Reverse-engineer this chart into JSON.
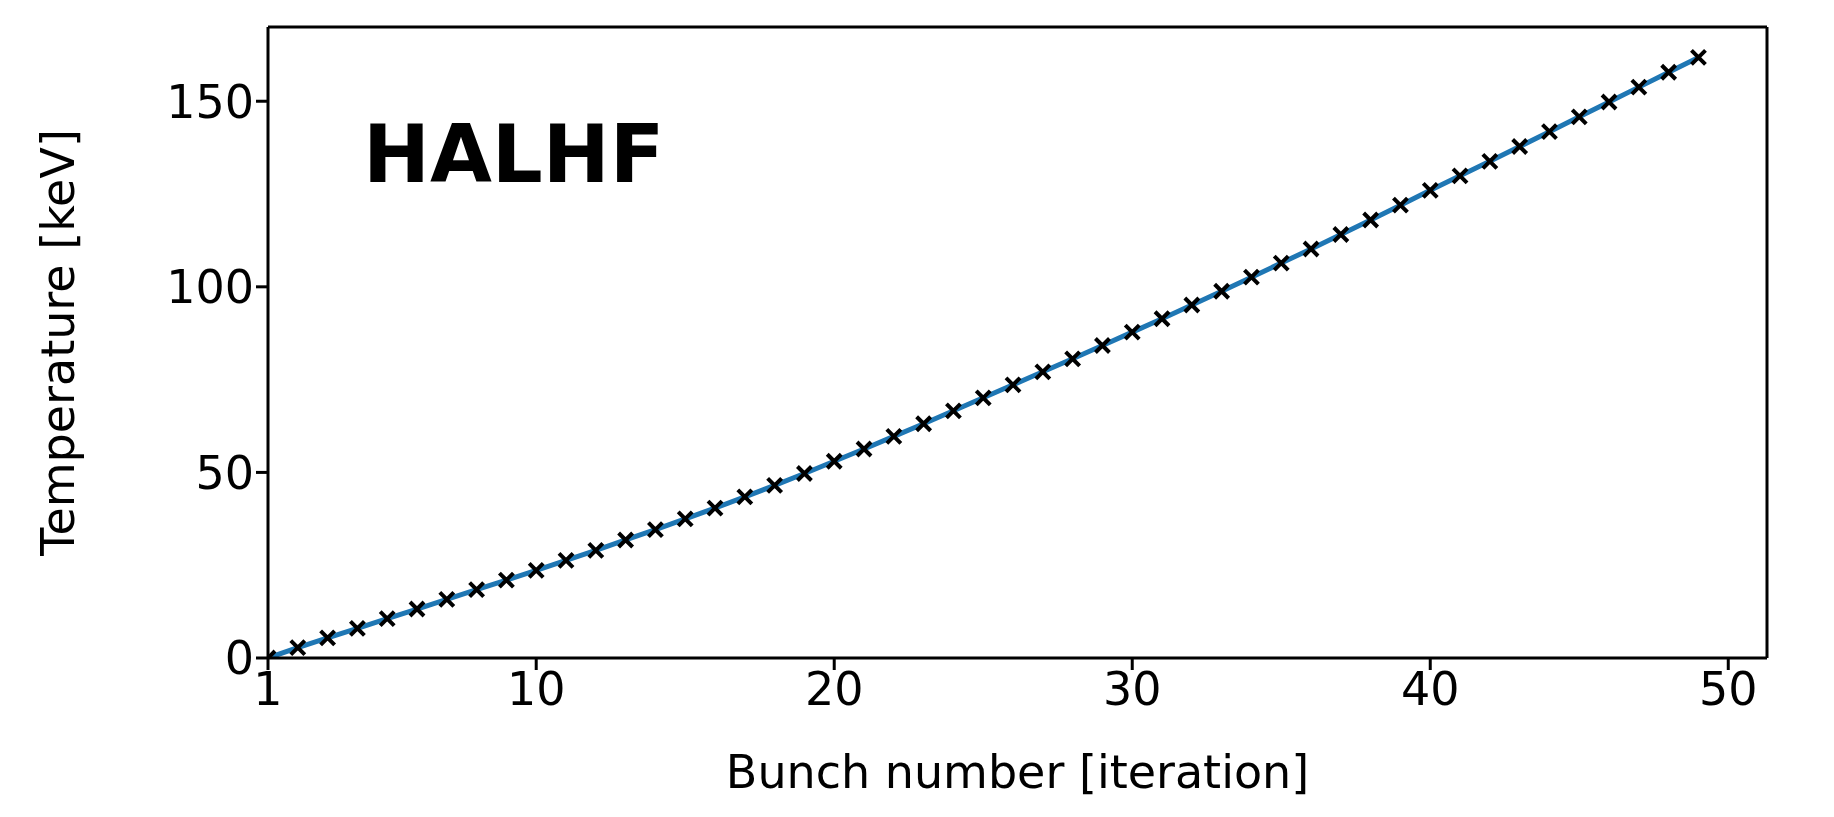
{
  "chart_data": {
    "type": "line",
    "xlabel": "Bunch number [iteration]",
    "ylabel": "Temperature [keV]",
    "annotations": [
      "HALHF"
    ],
    "x": [
      1,
      2,
      3,
      4,
      5,
      6,
      7,
      8,
      9,
      10,
      11,
      12,
      13,
      14,
      15,
      16,
      17,
      18,
      19,
      20,
      21,
      22,
      23,
      24,
      25,
      26,
      27,
      28,
      29,
      30,
      31,
      32,
      33,
      34,
      35,
      36,
      37,
      38,
      39,
      40,
      41,
      42,
      43,
      44,
      45,
      46,
      47,
      48,
      49
    ],
    "series": [
      {
        "color": "#1f77b4",
        "marker": "none",
        "values": [
          0,
          2.8,
          5.4,
          8.0,
          10.6,
          13.2,
          15.8,
          18.4,
          21.0,
          23.6,
          26.3,
          29.0,
          31.8,
          34.6,
          37.5,
          40.4,
          43.4,
          46.5,
          49.7,
          53.0,
          56.3,
          59.7,
          63.1,
          66.6,
          70.1,
          73.6,
          77.1,
          80.6,
          84.2,
          87.8,
          91.4,
          95.1,
          98.8,
          102.6,
          106.4,
          110.2,
          114.1,
          118.0,
          122.0,
          126.0,
          129.9,
          133.8,
          137.8,
          141.8,
          145.8,
          149.8,
          153.8,
          157.8,
          161.8
        ]
      },
      {
        "type": "scatter",
        "color": "#000000",
        "marker": "cross",
        "values": [
          0,
          2.8,
          5.4,
          8.0,
          10.6,
          13.2,
          15.8,
          18.4,
          21.0,
          23.6,
          26.3,
          29.0,
          31.8,
          34.6,
          37.5,
          40.4,
          43.4,
          46.5,
          49.7,
          53.0,
          56.3,
          59.7,
          63.1,
          66.6,
          70.1,
          73.6,
          77.1,
          80.6,
          84.2,
          87.8,
          91.4,
          95.1,
          98.8,
          102.6,
          106.4,
          110.2,
          114.1,
          118.0,
          122.0,
          126.0,
          129.9,
          133.8,
          137.8,
          141.8,
          145.8,
          149.8,
          153.8,
          157.8,
          161.8
        ]
      }
    ],
    "xlim": [
      1,
      51.3
    ],
    "xticks": [
      1,
      10,
      20,
      30,
      40,
      50
    ],
    "ylim": [
      0,
      170
    ],
    "yticks": [
      0,
      50,
      100,
      150
    ],
    "grid": false,
    "legend": false
  }
}
